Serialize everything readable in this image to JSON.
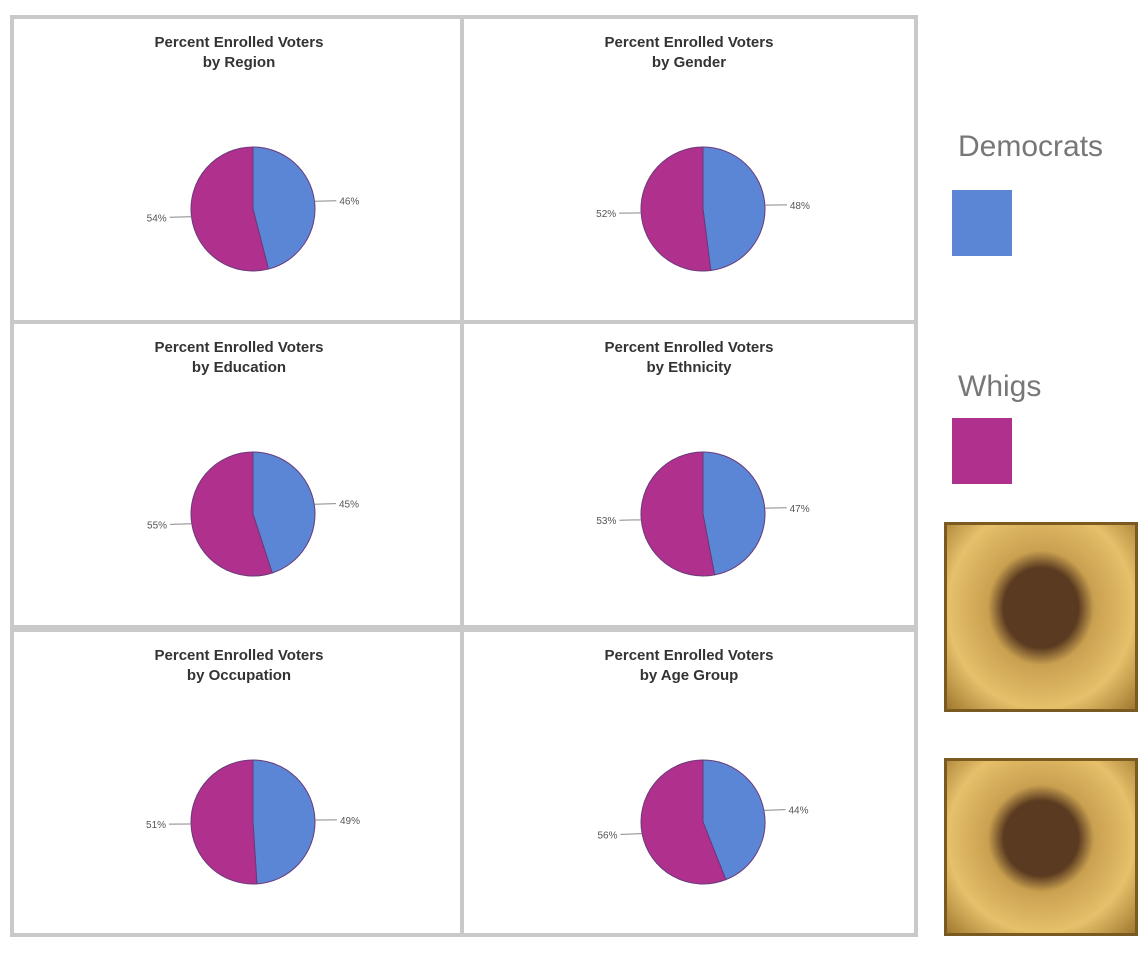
{
  "chart_data": [
    {
      "type": "pie",
      "title": "Percent Enrolled Voters\nby Region",
      "categories": [
        "Democrats",
        "Whigs"
      ],
      "colors": [
        "#5b86d6",
        "#b0308e"
      ],
      "values": [
        46,
        54
      ],
      "value_labels": [
        "46%",
        "54%"
      ]
    },
    {
      "type": "pie",
      "title": "Percent Enrolled Voters\nby Gender",
      "categories": [
        "Democrats",
        "Whigs"
      ],
      "colors": [
        "#5b86d6",
        "#b0308e"
      ],
      "values": [
        48,
        52
      ],
      "value_labels": [
        "48%",
        "52%"
      ]
    },
    {
      "type": "pie",
      "title": "Percent Enrolled Voters\nby Education",
      "categories": [
        "Democrats",
        "Whigs"
      ],
      "colors": [
        "#5b86d6",
        "#b0308e"
      ],
      "values": [
        45,
        55
      ],
      "value_labels": [
        "45%",
        "55%"
      ]
    },
    {
      "type": "pie",
      "title": "Percent Enrolled Voters\nby Ethnicity",
      "categories": [
        "Democrats",
        "Whigs"
      ],
      "colors": [
        "#5b86d6",
        "#b0308e"
      ],
      "values": [
        47,
        53
      ],
      "value_labels": [
        "47%",
        "53%"
      ]
    },
    {
      "type": "pie",
      "title": "Percent Enrolled Voters\nby Occupation",
      "categories": [
        "Democrats",
        "Whigs"
      ],
      "colors": [
        "#5b86d6",
        "#b0308e"
      ],
      "values": [
        49,
        51
      ],
      "value_labels": [
        "49%",
        "51%"
      ]
    },
    {
      "type": "pie",
      "title": "Percent Enrolled Voters\nby Age Group",
      "categories": [
        "Democrats",
        "Whigs"
      ],
      "colors": [
        "#5b86d6",
        "#b0308e"
      ],
      "values": [
        44,
        56
      ],
      "value_labels": [
        "44%",
        "56%"
      ]
    }
  ]
}
